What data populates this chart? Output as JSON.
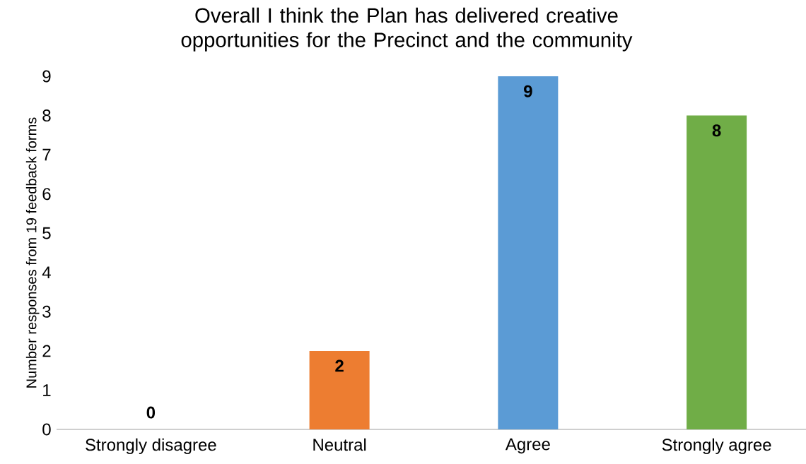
{
  "chart_data": {
    "type": "bar",
    "title": "Overall I think the Plan has delivered creative opportunities for the Precinct and the community",
    "ylabel": "Number responses from 19 feedback forms",
    "categories": [
      "Strongly disagree",
      "Neutral",
      "Agree",
      "Strongly agree"
    ],
    "values": [
      0,
      2,
      9,
      8
    ],
    "colors": [
      "#5b9bd5",
      "#ed7d31",
      "#5b9bd5",
      "#70ad47"
    ],
    "ylim": [
      0,
      9
    ],
    "yticks": [
      0,
      1,
      2,
      3,
      4,
      5,
      6,
      7,
      8,
      9
    ],
    "data_labels": true
  }
}
